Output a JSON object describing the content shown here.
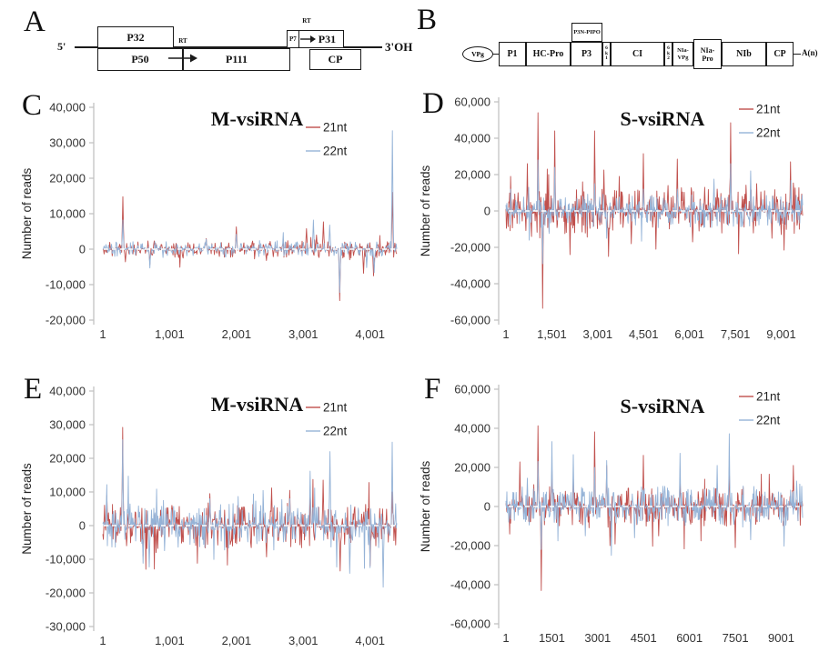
{
  "panels": {
    "A": "A",
    "B": "B",
    "C": "C",
    "D": "D",
    "E": "E",
    "F": "F"
  },
  "diagramA": {
    "label_5prime": "5'",
    "label_3prime": "3'OH",
    "rt1": "RT",
    "rt2": "RT",
    "boxes": {
      "p32": "P32",
      "p50": "P50",
      "p111": "P111",
      "p7": "P7",
      "p31": "P31",
      "cp": "CP"
    }
  },
  "diagramB": {
    "vpg": "VPg",
    "pipo": "P3N-PIPO",
    "an": "A(n)",
    "boxes": [
      "P1",
      "HC-Pro",
      "P3",
      "6k1",
      "CI",
      "6k2",
      "NIa-VPg",
      "NIa-Pro",
      "NIb",
      "CP"
    ]
  },
  "chart_data": [
    {
      "id": "C",
      "type": "line",
      "title": "M-vsiRNA",
      "ylabel": "Number of reads",
      "y_max": 40000,
      "y_min": -20000,
      "y_step": 10000,
      "y_tick_labels": [
        "40,000",
        "30,000",
        "20,000",
        "10,000",
        "0",
        "-10,000",
        "-20,000"
      ],
      "x_max": 4400,
      "x_ticks": [
        {
          "v": 1,
          "label": "1"
        },
        {
          "v": 1001,
          "label": "1,001"
        },
        {
          "v": 2001,
          "label": "2,001"
        },
        {
          "v": 3001,
          "label": "3,001"
        },
        {
          "v": 4001,
          "label": "4,001"
        }
      ],
      "zero_line": {
        "color": "#ffffff",
        "style": "dashed"
      },
      "series": [
        {
          "name": "21nt",
          "color": "#C0504D",
          "noise_band": 2400,
          "peaks": [
            [
              300,
              14800
            ],
            [
              340,
              -3600
            ],
            [
              700,
              -4300
            ],
            [
              1200,
              -2500
            ],
            [
              1550,
              3000
            ],
            [
              2000,
              6300
            ],
            [
              2450,
              -3200
            ],
            [
              2700,
              2600
            ],
            [
              3050,
              5800
            ],
            [
              3200,
              4000
            ],
            [
              3300,
              7700
            ],
            [
              3550,
              -14500
            ],
            [
              3700,
              -3000
            ],
            [
              3900,
              -6800
            ],
            [
              4050,
              -7500
            ],
            [
              4330,
              16000
            ]
          ]
        },
        {
          "name": "22nt",
          "color": "#95B3D7",
          "noise_band": 2200,
          "peaks": [
            [
              300,
              8200
            ],
            [
              700,
              -5300
            ],
            [
              1550,
              2800
            ],
            [
              2000,
              4200
            ],
            [
              2700,
              4700
            ],
            [
              3150,
              8200
            ],
            [
              3400,
              6800
            ],
            [
              3550,
              -12200
            ],
            [
              3950,
              -5200
            ],
            [
              4060,
              -6600
            ],
            [
              4330,
              33400
            ]
          ]
        }
      ]
    },
    {
      "id": "D",
      "type": "line",
      "title": "S-vsiRNA",
      "ylabel": "Number of reads",
      "y_max": 60000,
      "y_min": -60000,
      "y_step": 20000,
      "y_tick_labels": [
        "60,000",
        "40,000",
        "20,000",
        "0",
        "-20,000",
        "-40,000",
        "-60,000"
      ],
      "x_max": 9700,
      "x_ticks": [
        {
          "v": 1,
          "label": "1"
        },
        {
          "v": 1501,
          "label": "1,501"
        },
        {
          "v": 3001,
          "label": "3,001"
        },
        {
          "v": 4501,
          "label": "4,501"
        },
        {
          "v": 6001,
          "label": "6,001"
        },
        {
          "v": 7501,
          "label": "7,501"
        },
        {
          "v": 9001,
          "label": "9,001"
        }
      ],
      "zero_line": {
        "color": "#ffffff",
        "style": "dashed"
      },
      "series": [
        {
          "name": "21nt",
          "color": "#C0504D",
          "noise_band": 12500,
          "peaks": [
            [
              150,
              19000
            ],
            [
              400,
              10000
            ],
            [
              700,
              26000
            ],
            [
              1050,
              54000
            ],
            [
              1200,
              -53500
            ],
            [
              1400,
              20000
            ],
            [
              1600,
              44000
            ],
            [
              2100,
              -24000
            ],
            [
              2500,
              16000
            ],
            [
              2900,
              44000
            ],
            [
              3200,
              22500
            ],
            [
              3350,
              -25000
            ],
            [
              3700,
              19000
            ],
            [
              4100,
              -18000
            ],
            [
              4500,
              31500
            ],
            [
              4900,
              -21000
            ],
            [
              5300,
              14000
            ],
            [
              5600,
              28500
            ],
            [
              6100,
              -17000
            ],
            [
              6500,
              13000
            ],
            [
              6900,
              12000
            ],
            [
              7350,
              48500
            ],
            [
              7600,
              -23500
            ],
            [
              8200,
              15000
            ],
            [
              8700,
              -15000
            ],
            [
              9100,
              -21500
            ],
            [
              9300,
              27000
            ],
            [
              9600,
              -10000
            ]
          ]
        },
        {
          "name": "22nt",
          "color": "#95B3D7",
          "noise_band": 8800,
          "peaks": [
            [
              150,
              12000
            ],
            [
              1050,
              28000
            ],
            [
              1200,
              -29000
            ],
            [
              1600,
              24000
            ],
            [
              2900,
              15000
            ],
            [
              3300,
              -15000
            ],
            [
              4500,
              12000
            ],
            [
              5600,
              12000
            ],
            [
              6800,
              17500
            ],
            [
              7350,
              26000
            ],
            [
              8000,
              22000
            ],
            [
              9300,
              9000
            ]
          ]
        }
      ]
    },
    {
      "id": "E",
      "type": "line",
      "title": "M-vsiRNA",
      "ylabel": "Number of reads",
      "y_max": 40000,
      "y_min": -30000,
      "y_step": 10000,
      "y_tick_labels": [
        "40,000",
        "30,000",
        "20,000",
        "10,000",
        "0",
        "-10,000",
        "-20,000",
        "-30,000"
      ],
      "x_max": 4400,
      "x_ticks": [
        {
          "v": 1,
          "label": "1"
        },
        {
          "v": 1001,
          "label": "1,001"
        },
        {
          "v": 2001,
          "label": "2,001"
        },
        {
          "v": 3001,
          "label": "3,001"
        },
        {
          "v": 4001,
          "label": "4,001"
        }
      ],
      "zero_line": {
        "color": "#ffffff",
        "style": "dashed"
      },
      "series": [
        {
          "name": "21nt",
          "color": "#C0504D",
          "noise_band": 6800,
          "peaks": [
            [
              60,
              9000
            ],
            [
              300,
              29200
            ],
            [
              360,
              -6000
            ],
            [
              600,
              -9000
            ],
            [
              800,
              -8000
            ],
            [
              1600,
              9500
            ],
            [
              2450,
              -9300
            ],
            [
              2800,
              10500
            ],
            [
              3100,
              10000
            ],
            [
              3300,
              13500
            ],
            [
              3550,
              -13500
            ],
            [
              4000,
              -12000
            ],
            [
              4330,
              10000
            ]
          ]
        },
        {
          "name": "22nt",
          "color": "#95B3D7",
          "noise_band": 7200,
          "peaks": [
            [
              60,
              12200
            ],
            [
              300,
              25500
            ],
            [
              600,
              -11200
            ],
            [
              700,
              -12300
            ],
            [
              1600,
              8000
            ],
            [
              2800,
              8000
            ],
            [
              3100,
              16200
            ],
            [
              3400,
              22000
            ],
            [
              3700,
              -14200
            ],
            [
              4000,
              -12500
            ],
            [
              4200,
              -18300
            ],
            [
              4330,
              24800
            ]
          ]
        }
      ]
    },
    {
      "id": "F",
      "type": "line",
      "title": "S-vsiRNA",
      "ylabel": "Number of reads",
      "y_max": 60000,
      "y_min": -60000,
      "y_step": 20000,
      "y_tick_labels": [
        "60,000",
        "40,000",
        "20,000",
        "0",
        "-20,000",
        "-40,000",
        "-60,000"
      ],
      "x_max": 9700,
      "x_ticks": [
        {
          "v": 1,
          "label": "1"
        },
        {
          "v": 1501,
          "label": "1501"
        },
        {
          "v": 3001,
          "label": "3001"
        },
        {
          "v": 4501,
          "label": "4501"
        },
        {
          "v": 6001,
          "label": "6001"
        },
        {
          "v": 7501,
          "label": "7501"
        },
        {
          "v": 9001,
          "label": "9001"
        }
      ],
      "zero_line": {
        "color": "#ffffff",
        "style": "dashed"
      },
      "series": [
        {
          "name": "21nt",
          "color": "#C0504D",
          "noise_band": 10200,
          "peaks": [
            [
              450,
              22800
            ],
            [
              1050,
              41300
            ],
            [
              1150,
              -43000
            ],
            [
              1500,
              20000
            ],
            [
              2200,
              15000
            ],
            [
              2900,
              38200
            ],
            [
              3300,
              21000
            ],
            [
              3400,
              -20000
            ],
            [
              4500,
              26200
            ],
            [
              5000,
              -15000
            ],
            [
              5700,
              16000
            ],
            [
              6500,
              14000
            ],
            [
              7300,
              20000
            ],
            [
              7500,
              -21000
            ],
            [
              8600,
              16500
            ],
            [
              9400,
              21000
            ]
          ]
        },
        {
          "name": "22nt",
          "color": "#95B3D7",
          "noise_band": 10200,
          "peaks": [
            [
              700,
              14500
            ],
            [
              1050,
              23000
            ],
            [
              1150,
              -22000
            ],
            [
              1500,
              33200
            ],
            [
              2200,
              26500
            ],
            [
              2600,
              -15000
            ],
            [
              2900,
              20000
            ],
            [
              3300,
              23500
            ],
            [
              3450,
              -25000
            ],
            [
              4200,
              -16000
            ],
            [
              5700,
              27200
            ],
            [
              6900,
              21000
            ],
            [
              7300,
              37200
            ],
            [
              8000,
              -17000
            ],
            [
              9100,
              -20300
            ],
            [
              9500,
              13000
            ]
          ]
        }
      ]
    }
  ]
}
